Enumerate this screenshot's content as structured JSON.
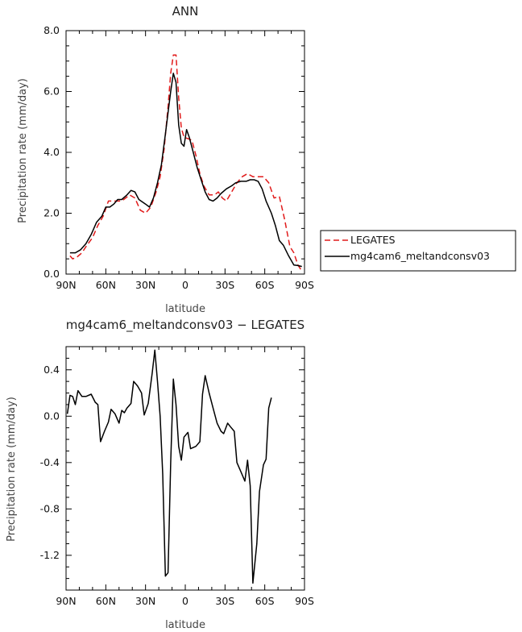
{
  "chart_data": [
    {
      "type": "line",
      "title": "ANN",
      "xlabel": "latitude",
      "ylabel": "Precipitation rate (mm/day)",
      "xlim": [
        90,
        -90
      ],
      "ylim": [
        0,
        8
      ],
      "x_tick_values": [
        90,
        60,
        30,
        0,
        -30,
        -60,
        -90
      ],
      "x_tick_labels": [
        "90N",
        "60N",
        "30N",
        "0",
        "30S",
        "60S",
        "90S"
      ],
      "y_tick_values": [
        0,
        2,
        4,
        6,
        8
      ],
      "y_tick_labels": [
        "0.0",
        "2.0",
        "4.0",
        "6.0",
        "8.0"
      ],
      "legend_placement": "right",
      "series": [
        {
          "name": "LEGATES",
          "color": "#e11b1b",
          "dash": "dashed",
          "points": [
            [
              87,
              0.6
            ],
            [
              85,
              0.5
            ],
            [
              82,
              0.55
            ],
            [
              78,
              0.7
            ],
            [
              75,
              0.9
            ],
            [
              70,
              1.2
            ],
            [
              66,
              1.6
            ],
            [
              62,
              1.9
            ],
            [
              58,
              2.4
            ],
            [
              55,
              2.4
            ],
            [
              52,
              2.4
            ],
            [
              48,
              2.4
            ],
            [
              45,
              2.5
            ],
            [
              42,
              2.6
            ],
            [
              38,
              2.5
            ],
            [
              34,
              2.1
            ],
            [
              30,
              2.0
            ],
            [
              26,
              2.2
            ],
            [
              22,
              2.7
            ],
            [
              19,
              3.2
            ],
            [
              16,
              4.1
            ],
            [
              13,
              5.5
            ],
            [
              11,
              6.6
            ],
            [
              9,
              7.2
            ],
            [
              7,
              7.2
            ],
            [
              5,
              5.8
            ],
            [
              3,
              4.8
            ],
            [
              1,
              4.5
            ],
            [
              -2,
              4.45
            ],
            [
              -5,
              4.4
            ],
            [
              -8,
              3.9
            ],
            [
              -11,
              3.3
            ],
            [
              -14,
              2.9
            ],
            [
              -18,
              2.6
            ],
            [
              -22,
              2.6
            ],
            [
              -25,
              2.7
            ],
            [
              -28,
              2.5
            ],
            [
              -31,
              2.4
            ],
            [
              -35,
              2.7
            ],
            [
              -39,
              3.0
            ],
            [
              -43,
              3.2
            ],
            [
              -47,
              3.3
            ],
            [
              -51,
              3.2
            ],
            [
              -55,
              3.2
            ],
            [
              -59,
              3.2
            ],
            [
              -63,
              3.0
            ],
            [
              -67,
              2.5
            ],
            [
              -71,
              2.55
            ],
            [
              -75,
              1.8
            ],
            [
              -79,
              0.9
            ],
            [
              -82,
              0.7
            ],
            [
              -85,
              0.3
            ],
            [
              -88,
              0.1
            ]
          ]
        },
        {
          "name": "mg4cam6_meltandconsv03",
          "color": "#000000",
          "dash": "solid",
          "points": [
            [
              87,
              0.7
            ],
            [
              83,
              0.7
            ],
            [
              79,
              0.8
            ],
            [
              75,
              1.0
            ],
            [
              71,
              1.3
            ],
            [
              67,
              1.7
            ],
            [
              63,
              1.9
            ],
            [
              60,
              2.2
            ],
            [
              57,
              2.2
            ],
            [
              54,
              2.3
            ],
            [
              51,
              2.45
            ],
            [
              48,
              2.45
            ],
            [
              44,
              2.6
            ],
            [
              41,
              2.75
            ],
            [
              38,
              2.7
            ],
            [
              35,
              2.45
            ],
            [
              30,
              2.3
            ],
            [
              27,
              2.2
            ],
            [
              24,
              2.5
            ],
            [
              21,
              3.0
            ],
            [
              18,
              3.6
            ],
            [
              15,
              4.6
            ],
            [
              13,
              5.3
            ],
            [
              11,
              6.0
            ],
            [
              9,
              6.6
            ],
            [
              7,
              6.3
            ],
            [
              5,
              4.9
            ],
            [
              3,
              4.3
            ],
            [
              1,
              4.2
            ],
            [
              -1,
              4.75
            ],
            [
              -3,
              4.5
            ],
            [
              -6,
              4.0
            ],
            [
              -9,
              3.5
            ],
            [
              -12,
              3.1
            ],
            [
              -15,
              2.7
            ],
            [
              -18,
              2.45
            ],
            [
              -21,
              2.4
            ],
            [
              -24,
              2.5
            ],
            [
              -27,
              2.65
            ],
            [
              -31,
              2.8
            ],
            [
              -35,
              2.9
            ],
            [
              -38,
              3.0
            ],
            [
              -42,
              3.05
            ],
            [
              -46,
              3.05
            ],
            [
              -49,
              3.1
            ],
            [
              -52,
              3.1
            ],
            [
              -55,
              3.05
            ],
            [
              -58,
              2.8
            ],
            [
              -61,
              2.4
            ],
            [
              -65,
              2.0
            ],
            [
              -68,
              1.6
            ],
            [
              -71,
              1.1
            ],
            [
              -74,
              0.95
            ],
            [
              -78,
              0.6
            ],
            [
              -82,
              0.3
            ],
            [
              -85,
              0.28
            ],
            [
              -88,
              0.25
            ]
          ]
        }
      ]
    },
    {
      "type": "line",
      "title": "mg4cam6_meltandconsv03 − LEGATES",
      "xlabel": "latitude",
      "ylabel": "Precipitation rate (mm/day)",
      "xlim": [
        90,
        -90
      ],
      "ylim": [
        -1.5,
        0.6
      ],
      "x_tick_values": [
        90,
        60,
        30,
        0,
        -30,
        -60,
        -90
      ],
      "x_tick_labels": [
        "90N",
        "60N",
        "30N",
        "0",
        "30S",
        "60S",
        "90S"
      ],
      "y_tick_values": [
        0.4,
        0.0,
        -0.4,
        -0.8,
        -1.2
      ],
      "y_tick_labels": [
        "0.4",
        "0.0",
        "-0.4",
        "-0.8",
        "-1.2"
      ],
      "series": [
        {
          "color": "#000000",
          "dash": "solid",
          "points": [
            [
              89,
              0.02
            ],
            [
              87,
              0.18
            ],
            [
              85,
              0.17
            ],
            [
              83,
              0.1
            ],
            [
              81,
              0.22
            ],
            [
              78,
              0.17
            ],
            [
              75,
              0.17
            ],
            [
              71,
              0.19
            ],
            [
              68,
              0.12
            ],
            [
              66,
              0.1
            ],
            [
              64,
              -0.22
            ],
            [
              61,
              -0.13
            ],
            [
              58,
              -0.05
            ],
            [
              56,
              0.06
            ],
            [
              53,
              0.02
            ],
            [
              50,
              -0.06
            ],
            [
              48,
              0.05
            ],
            [
              46,
              0.03
            ],
            [
              44,
              0.07
            ],
            [
              41,
              0.11
            ],
            [
              39,
              0.3
            ],
            [
              36,
              0.26
            ],
            [
              33,
              0.2
            ],
            [
              31,
              0.01
            ],
            [
              28,
              0.11
            ],
            [
              25,
              0.37
            ],
            [
              23,
              0.57
            ],
            [
              21,
              0.3
            ],
            [
              19,
              0.0
            ],
            [
              17,
              -0.5
            ],
            [
              15,
              -1.38
            ],
            [
              13,
              -1.35
            ],
            [
              11,
              -0.4
            ],
            [
              9,
              0.32
            ],
            [
              7,
              0.1
            ],
            [
              5,
              -0.26
            ],
            [
              3,
              -0.38
            ],
            [
              1,
              -0.18
            ],
            [
              -2,
              -0.14
            ],
            [
              -4,
              -0.28
            ],
            [
              -8,
              -0.26
            ],
            [
              -11,
              -0.22
            ],
            [
              -13,
              0.19
            ],
            [
              -15,
              0.35
            ],
            [
              -18,
              0.2
            ],
            [
              -21,
              0.07
            ],
            [
              -24,
              -0.06
            ],
            [
              -27,
              -0.13
            ],
            [
              -29,
              -0.15
            ],
            [
              -32,
              -0.06
            ],
            [
              -34,
              -0.09
            ],
            [
              -37,
              -0.13
            ],
            [
              -39,
              -0.4
            ],
            [
              -42,
              -0.48
            ],
            [
              -45,
              -0.56
            ],
            [
              -47,
              -0.38
            ],
            [
              -49,
              -0.6
            ],
            [
              -51,
              -1.44
            ],
            [
              -54,
              -1.1
            ],
            [
              -56,
              -0.65
            ],
            [
              -59,
              -0.42
            ],
            [
              -61,
              -0.37
            ],
            [
              -63,
              0.07
            ],
            [
              -65,
              0.16
            ]
          ]
        }
      ]
    }
  ]
}
